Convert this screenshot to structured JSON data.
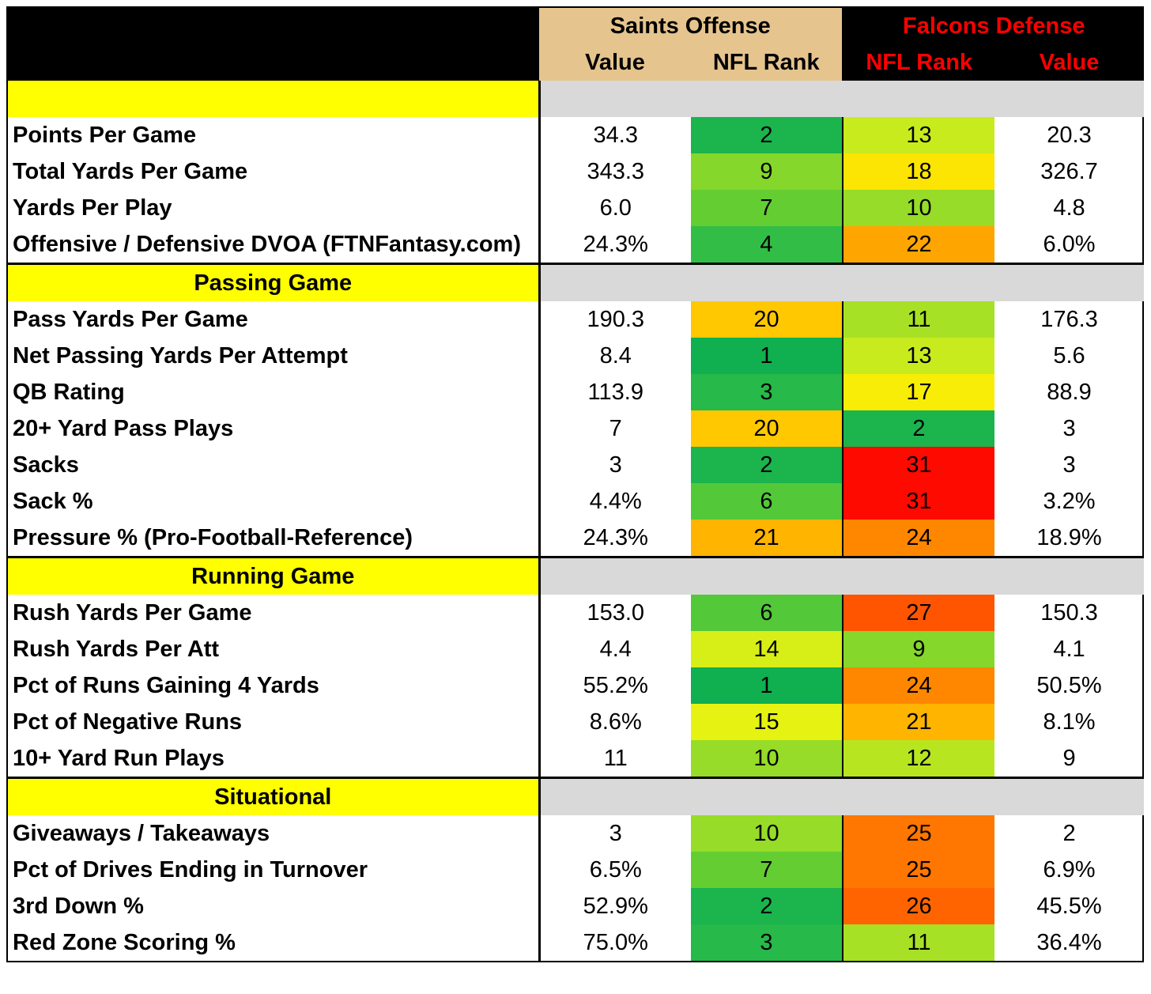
{
  "header": {
    "left_group": "Saints Offense",
    "right_group": "Falcons Defense",
    "left_cols": [
      "Value",
      "NFL Rank"
    ],
    "right_cols": [
      "NFL Rank",
      "Value"
    ]
  },
  "colors": {
    "tan": "#e6c48e",
    "yellow": "#ffff00",
    "gray": "#d9d9d9",
    "red_text": "#ff0000"
  },
  "sections": [
    {
      "title": "",
      "rows": [
        {
          "label": "Points Per Game",
          "off_value": "34.3",
          "off_rank": "2",
          "def_rank": "13",
          "def_value": "20.3"
        },
        {
          "label": "Total Yards Per Game",
          "off_value": "343.3",
          "off_rank": "9",
          "def_rank": "18",
          "def_value": "326.7"
        },
        {
          "label": "Yards Per Play",
          "off_value": "6.0",
          "off_rank": "7",
          "def_rank": "10",
          "def_value": "4.8"
        },
        {
          "label": "Offensive / Defensive DVOA (FTNFantasy.com)",
          "off_value": "24.3%",
          "off_rank": "4",
          "def_rank": "22",
          "def_value": "6.0%"
        }
      ]
    },
    {
      "title": "Passing Game",
      "rows": [
        {
          "label": "Pass Yards Per Game",
          "off_value": "190.3",
          "off_rank": "20",
          "def_rank": "11",
          "def_value": "176.3"
        },
        {
          "label": "Net Passing Yards Per Attempt",
          "off_value": "8.4",
          "off_rank": "1",
          "def_rank": "13",
          "def_value": "5.6"
        },
        {
          "label": "QB Rating",
          "off_value": "113.9",
          "off_rank": "3",
          "def_rank": "17",
          "def_value": "88.9"
        },
        {
          "label": "20+ Yard Pass Plays",
          "off_value": "7",
          "off_rank": "20",
          "def_rank": "2",
          "def_value": "3"
        },
        {
          "label": "Sacks",
          "off_value": "3",
          "off_rank": "2",
          "def_rank": "31",
          "def_value": "3"
        },
        {
          "label": "Sack %",
          "off_value": "4.4%",
          "off_rank": "6",
          "def_rank": "31",
          "def_value": "3.2%"
        },
        {
          "label": "Pressure % (Pro-Football-Reference)",
          "off_value": "24.3%",
          "off_rank": "21",
          "def_rank": "24",
          "def_value": "18.9%"
        }
      ]
    },
    {
      "title": "Running Game",
      "rows": [
        {
          "label": "Rush Yards Per Game",
          "off_value": "153.0",
          "off_rank": "6",
          "def_rank": "27",
          "def_value": "150.3"
        },
        {
          "label": "Rush Yards Per Att",
          "off_value": "4.4",
          "off_rank": "14",
          "def_rank": "9",
          "def_value": "4.1"
        },
        {
          "label": "Pct of Runs Gaining 4 Yards",
          "off_value": "55.2%",
          "off_rank": "1",
          "def_rank": "24",
          "def_value": "50.5%"
        },
        {
          "label": "Pct of Negative Runs",
          "off_value": "8.6%",
          "off_rank": "15",
          "def_rank": "21",
          "def_value": "8.1%"
        },
        {
          "label": "10+ Yard Run Plays",
          "off_value": "11",
          "off_rank": "10",
          "def_rank": "12",
          "def_value": "9"
        }
      ]
    },
    {
      "title": "Situational",
      "rows": [
        {
          "label": "Giveaways / Takeaways",
          "off_value": "3",
          "off_rank": "10",
          "def_rank": "25",
          "def_value": "2"
        },
        {
          "label": "Pct of Drives Ending in Turnover",
          "off_value": "6.5%",
          "off_rank": "7",
          "def_rank": "25",
          "def_value": "6.9%"
        },
        {
          "label": "3rd Down %",
          "off_value": "52.9%",
          "off_rank": "2",
          "def_rank": "26",
          "def_value": "45.5%"
        },
        {
          "label": "Red Zone Scoring %",
          "off_value": "75.0%",
          "off_rank": "3",
          "def_rank": "11",
          "def_value": "36.4%"
        }
      ]
    }
  ]
}
